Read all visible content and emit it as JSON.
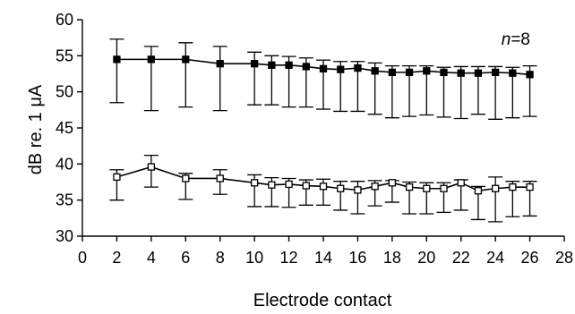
{
  "chart_data": {
    "type": "line",
    "title": "",
    "xlabel": "Electrode contact",
    "ylabel": "dB re. 1 μA",
    "xlim": [
      0,
      28
    ],
    "ylim": [
      30,
      60
    ],
    "xticks": [
      0,
      2,
      4,
      6,
      8,
      10,
      12,
      14,
      16,
      18,
      20,
      22,
      24,
      26,
      28
    ],
    "yticks": [
      30,
      35,
      40,
      45,
      50,
      55,
      60
    ],
    "grid": false,
    "annotation": {
      "italic": "n",
      "rest": "=8"
    },
    "x": [
      2,
      4,
      6,
      8,
      10,
      11,
      12,
      13,
      14,
      15,
      16,
      17,
      18,
      19,
      20,
      21,
      22,
      23,
      24,
      25,
      26
    ],
    "series": [
      {
        "marker": "filled-square",
        "color": "#000000",
        "values": [
          54.5,
          54.5,
          54.5,
          53.9,
          53.9,
          53.7,
          53.7,
          53.5,
          53.2,
          53.1,
          53.3,
          52.9,
          52.7,
          52.7,
          52.9,
          52.7,
          52.6,
          52.6,
          52.7,
          52.6,
          52.4
        ],
        "error_high": [
          57.3,
          56.3,
          56.8,
          56.3,
          55.5,
          55.0,
          54.9,
          54.7,
          54.4,
          54.2,
          54.2,
          54.0,
          53.6,
          53.6,
          53.6,
          53.4,
          53.5,
          53.5,
          53.5,
          53.4,
          53.6
        ],
        "error_low": [
          48.5,
          47.4,
          47.9,
          47.4,
          48.2,
          48.2,
          47.9,
          47.9,
          47.6,
          47.3,
          47.3,
          46.9,
          46.4,
          46.6,
          46.8,
          46.5,
          46.3,
          46.9,
          46.2,
          46.4,
          46.6
        ]
      },
      {
        "marker": "open-square",
        "color": "#000000",
        "values": [
          38.2,
          39.6,
          38.0,
          38.0,
          37.4,
          37.1,
          37.2,
          37.0,
          36.9,
          36.6,
          36.4,
          36.9,
          37.4,
          36.8,
          36.6,
          36.6,
          37.4,
          36.3,
          36.6,
          36.8,
          36.8
        ],
        "error_high": [
          39.2,
          41.2,
          38.7,
          39.2,
          38.5,
          38.1,
          38.0,
          37.8,
          37.9,
          37.6,
          37.6,
          37.7,
          37.7,
          37.5,
          37.4,
          37.4,
          37.8,
          36.9,
          38.2,
          37.6,
          37.6
        ],
        "error_low": [
          35.0,
          36.8,
          35.1,
          35.8,
          34.1,
          34.1,
          34.0,
          34.3,
          34.3,
          33.6,
          33.1,
          34.2,
          34.7,
          33.1,
          33.1,
          33.3,
          33.6,
          32.3,
          32.0,
          32.7,
          32.8
        ]
      }
    ]
  }
}
